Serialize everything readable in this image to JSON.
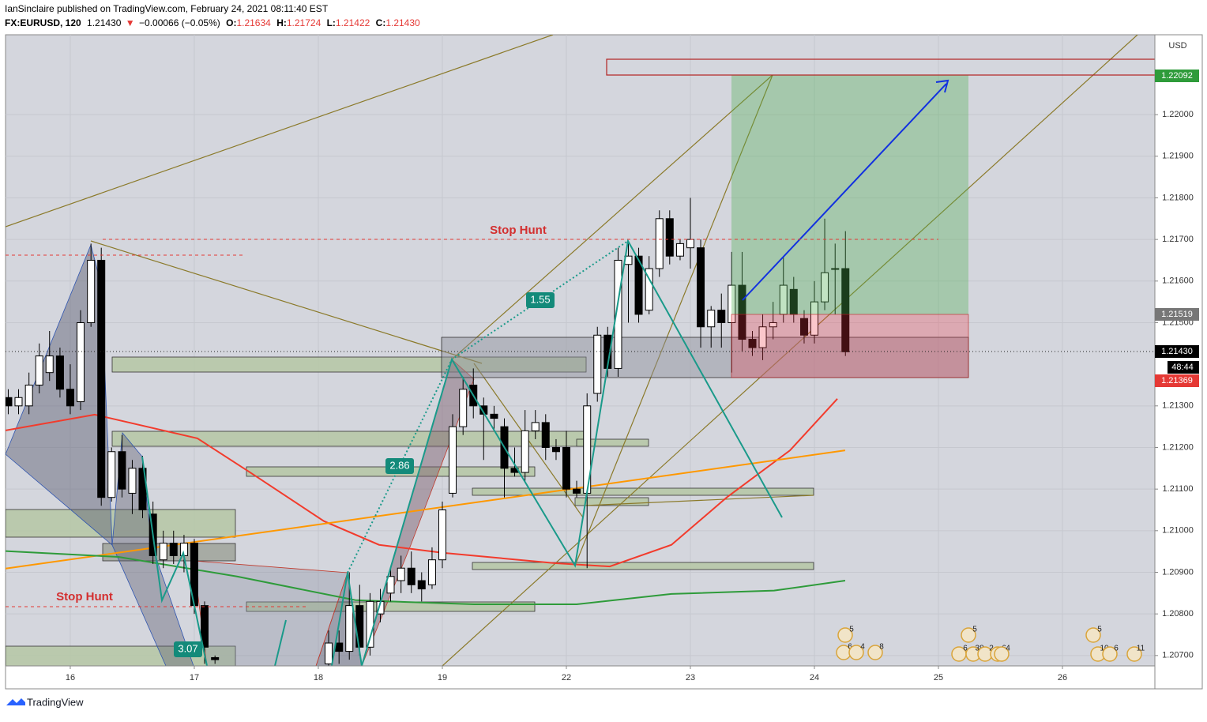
{
  "header": {
    "publisher": "IanSinclaire published on TradingView.com, February 24, 2021 08:11:40 EST",
    "symbol": "FX:EURUSD, 120",
    "last": "1.21430",
    "arrow": "▼",
    "change": "−0.00066 (−0.05%)",
    "o_label": "O:",
    "o": "1.21634",
    "h_label": "H:",
    "h": "1.21724",
    "l_label": "L:",
    "l": "1.21422",
    "c_label": "C:",
    "c": "1.21430"
  },
  "footer": {
    "brand": "TradingView"
  },
  "chart_data": {
    "type": "candlestick",
    "y_label": "USD",
    "xlim": [
      -0.522,
      8.745
    ],
    "ylim": [
      1.20675,
      1.22192
    ],
    "xticks": [
      {
        "value": 0,
        "label": "16"
      },
      {
        "value": 1,
        "label": "17"
      },
      {
        "value": 2,
        "label": "18"
      },
      {
        "value": 3,
        "label": "19"
      },
      {
        "value": 4,
        "label": "22"
      },
      {
        "value": 5,
        "label": "23"
      },
      {
        "value": 6,
        "label": "24"
      },
      {
        "value": 7,
        "label": "25"
      },
      {
        "value": 8,
        "label": "26"
      }
    ],
    "yticks": [
      {
        "value": 1.207,
        "label": "1.20700"
      },
      {
        "value": 1.208,
        "label": "1.20800"
      },
      {
        "value": 1.209,
        "label": "1.20900"
      },
      {
        "value": 1.21,
        "label": "1.21000"
      },
      {
        "value": 1.211,
        "label": "1.21100"
      },
      {
        "value": 1.212,
        "label": "1.21200"
      },
      {
        "value": 1.213,
        "label": "1.21300"
      },
      {
        "value": 1.215,
        "label": "1.21500"
      },
      {
        "value": 1.216,
        "label": "1.21600"
      },
      {
        "value": 1.217,
        "label": "1.21700"
      },
      {
        "value": 1.218,
        "label": "1.21800"
      },
      {
        "value": 1.219,
        "label": "1.21900"
      },
      {
        "value": 1.22,
        "label": "1.22000"
      }
    ],
    "grid": true,
    "candles": {
      "up_color": "#ffffff",
      "down_color": "#000000",
      "x": [
        -0.5,
        -0.417,
        -0.333,
        -0.25,
        -0.167,
        -0.083,
        0,
        0.083,
        0.167,
        0.25,
        0.333,
        0.417,
        0.5,
        0.583,
        0.667,
        0.75,
        0.833,
        0.917,
        1,
        1.083,
        1.167,
        2.083,
        2.167,
        2.25,
        2.333,
        2.417,
        2.5,
        2.583,
        2.667,
        2.75,
        2.833,
        2.917,
        3,
        3.083,
        3.167,
        3.25,
        3.333,
        3.417,
        3.5,
        3.583,
        3.667,
        3.75,
        3.833,
        3.917,
        4,
        4.083,
        4.167,
        4.25,
        4.333,
        4.417,
        4.5,
        4.583,
        4.667,
        4.75,
        4.833,
        4.917,
        5,
        5.083,
        5.167,
        5.25,
        5.333,
        5.417,
        5.5,
        5.583,
        5.667,
        5.75,
        5.833,
        5.917,
        6,
        6.083,
        6.167,
        6.25
      ],
      "open": [
        1.2132,
        1.213,
        1.213,
        1.2135,
        1.2138,
        1.2142,
        1.2134,
        1.2131,
        1.215,
        1.2165,
        1.2108,
        1.2119,
        1.2109,
        1.2115,
        1.2104,
        1.2093,
        1.2097,
        1.2094,
        1.2097,
        1.2082,
        1.20695,
        1.2068,
        1.2073,
        1.2071,
        1.2082,
        1.2072,
        1.208,
        1.2085,
        1.2088,
        1.2091,
        1.2088,
        1.2087,
        1.2093,
        1.2109,
        1.2125,
        1.2135,
        1.213,
        1.2128,
        1.2125,
        1.2115,
        1.2114,
        1.2124,
        1.2126,
        1.212,
        1.212,
        1.211,
        1.2109,
        1.2133,
        1.2147,
        1.2139,
        1.2164,
        1.2166,
        1.2153,
        1.2163,
        1.2175,
        1.2166,
        1.2168,
        1.2168,
        1.2149,
        1.2153,
        1.215,
        1.2159,
        1.2146,
        1.2144,
        1.2149,
        1.2152,
        1.2158,
        1.2151,
        1.2147,
        1.2155,
        1.2163,
        1.2163
      ],
      "high": [
        1.2134,
        1.2134,
        1.2138,
        1.2145,
        1.2148,
        1.2144,
        1.214,
        1.2153,
        1.2169,
        1.2168,
        1.212,
        1.2123,
        1.2117,
        1.2118,
        1.2107,
        1.21,
        1.21,
        1.2099,
        1.2098,
        1.2083,
        1.207,
        1.2076,
        1.2076,
        1.209,
        1.2087,
        1.2085,
        1.2086,
        1.2091,
        1.2094,
        1.2095,
        1.209,
        1.2096,
        1.2107,
        1.2128,
        1.2137,
        1.2139,
        1.2132,
        1.213,
        1.2127,
        1.212,
        1.2129,
        1.2129,
        1.2128,
        1.2122,
        1.2124,
        1.2112,
        1.2133,
        1.2149,
        1.2149,
        1.2168,
        1.2169,
        1.2168,
        1.2166,
        1.2177,
        1.2177,
        1.217,
        1.218,
        1.217,
        1.2154,
        1.2157,
        1.2167,
        1.2167,
        1.2148,
        1.2152,
        1.2155,
        1.2166,
        1.2161,
        1.2153,
        1.216,
        1.2175,
        1.2169,
        1.2172
      ],
      "low": [
        1.2128,
        1.2128,
        1.2128,
        1.2133,
        1.2136,
        1.2132,
        1.2128,
        1.2129,
        1.2149,
        1.2106,
        1.2107,
        1.2108,
        1.2104,
        1.2103,
        1.2092,
        1.2091,
        1.2092,
        1.209,
        1.208,
        1.2068,
        1.2068,
        1.2067,
        1.2068,
        1.2069,
        1.207,
        1.207,
        1.2078,
        1.2083,
        1.2085,
        1.2085,
        1.2083,
        1.2086,
        1.2091,
        1.2108,
        1.2123,
        1.2127,
        1.2117,
        1.2124,
        1.2108,
        1.2113,
        1.2112,
        1.2122,
        1.2117,
        1.2117,
        1.2108,
        1.2108,
        1.2091,
        1.2131,
        1.2137,
        1.2137,
        1.215,
        1.215,
        1.2152,
        1.2161,
        1.2164,
        1.2165,
        1.2163,
        1.2144,
        1.2144,
        1.2144,
        1.2138,
        1.2143,
        1.2142,
        1.2141,
        1.2146,
        1.215,
        1.215,
        1.2145,
        1.2145,
        1.2153,
        1.2152,
        1.2142
      ],
      "close": [
        1.213,
        1.2132,
        1.2135,
        1.2142,
        1.2142,
        1.2134,
        1.213,
        1.215,
        1.2165,
        1.2108,
        1.2119,
        1.211,
        1.2115,
        1.2105,
        1.2094,
        1.2097,
        1.2094,
        1.2097,
        1.2082,
        1.2072,
        1.2069,
        1.2073,
        1.2071,
        1.2082,
        1.2072,
        1.2083,
        1.2083,
        1.2089,
        1.2091,
        1.2087,
        1.2086,
        1.2093,
        1.2105,
        1.2125,
        1.2134,
        1.213,
        1.2128,
        1.2127,
        1.2115,
        1.2114,
        1.2124,
        1.2126,
        1.212,
        1.2119,
        1.211,
        1.2109,
        1.213,
        1.2147,
        1.2139,
        1.2165,
        1.2166,
        1.2152,
        1.2163,
        1.2175,
        1.2166,
        1.2169,
        1.217,
        1.2149,
        1.2153,
        1.215,
        1.2159,
        1.2146,
        1.2144,
        1.2149,
        1.215,
        1.2159,
        1.2152,
        1.2147,
        1.2155,
        1.2162,
        1.2163,
        1.2143
      ]
    },
    "lines": [
      {
        "color": "#f23b2c",
        "x": [
          -0.522,
          0.197,
          1.025,
          1.471,
          2.045,
          2.49,
          3.0,
          3.904,
          4.35,
          4.847,
          5.293,
          5.803,
          6.185
        ],
        "values": [
          1.21241,
          1.21279,
          1.21222,
          1.21136,
          1.21023,
          1.20966,
          1.20947,
          1.20922,
          1.20914,
          1.20966,
          1.2108,
          1.21193,
          1.21317
        ]
      },
      {
        "color": "#ff9800",
        "x": [
          -0.522,
          6.248
        ],
        "values": [
          1.20909,
          1.21193
        ]
      },
      {
        "color": "#2e9b3a",
        "x": [
          -0.522,
          0.389,
          1.344,
          2.299,
          3.255,
          4.083,
          4.847,
          5.675,
          6.248
        ],
        "values": [
          1.20951,
          1.20937,
          1.2089,
          1.20833,
          1.20823,
          1.20823,
          1.20848,
          1.20856,
          1.2088
        ]
      }
    ],
    "annotations": [
      "Stop Hunt",
      "Stop Hunt",
      "1.55",
      "2.86",
      "3.07"
    ],
    "price_tags": [
      "1.22092",
      "1.21519",
      "1.21430",
      "48:44",
      "1.21369"
    ],
    "event_badges": [
      "5",
      "6",
      "4",
      "8",
      "5",
      "6",
      "38",
      "2",
      "6",
      "4",
      "5",
      "10",
      "6",
      "11"
    ]
  }
}
